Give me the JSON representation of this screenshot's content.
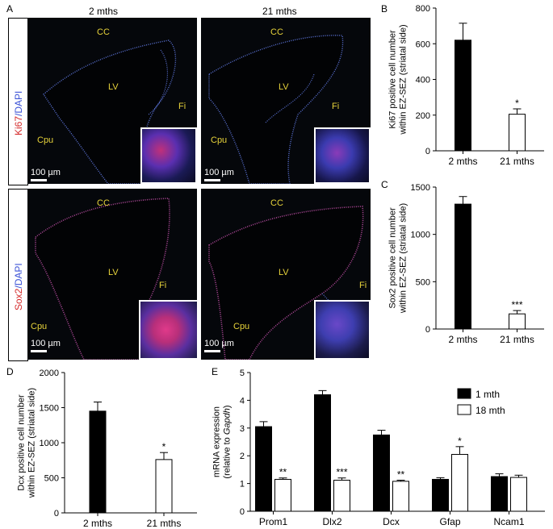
{
  "panels": {
    "A": {
      "letter": "A",
      "col_left": "2 mths",
      "col_right": "21 mths",
      "row_top_marker": "Ki67",
      "row_top_stain": "/DAPI",
      "row_bottom_marker": "Sox2",
      "row_bottom_stain": "/DAPI",
      "scale": "100 µm",
      "regions": {
        "cc": "CC",
        "lv": "LV",
        "fi": "Fi",
        "cpu": "Cpu"
      }
    },
    "B": {
      "letter": "B"
    },
    "C": {
      "letter": "C"
    },
    "D": {
      "letter": "D"
    },
    "E": {
      "letter": "E"
    }
  },
  "colors": {
    "filled": "#000000",
    "empty": "#ffffff",
    "tissue_bg": "#05070b",
    "label": "#e6d23a",
    "marker_red": "#d42a2a",
    "dapi_blue": "#3b52d6"
  },
  "chart_data": [
    {
      "id": "B",
      "type": "bar",
      "categories": [
        "2 mths",
        "21 mths"
      ],
      "values": [
        620,
        205
      ],
      "errors": [
        95,
        30
      ],
      "fills": [
        "filled",
        "empty"
      ],
      "significance": [
        "",
        "*"
      ],
      "ylabel_line1": "Ki67 positive cell number",
      "ylabel_line2": "within EZ-SEZ (striatal side)",
      "ylim": [
        0,
        800
      ],
      "yticks": [
        0,
        200,
        400,
        600,
        800
      ]
    },
    {
      "id": "C",
      "type": "bar",
      "categories": [
        "2 mths",
        "21 mths"
      ],
      "values": [
        1320,
        160
      ],
      "errors": [
        80,
        35
      ],
      "fills": [
        "filled",
        "empty"
      ],
      "significance": [
        "",
        "***"
      ],
      "ylabel_line1": "Sox2 positive cell number",
      "ylabel_line2": "within EZ-SEZ (striatal side)",
      "ylim": [
        0,
        1500
      ],
      "yticks": [
        0,
        500,
        1000,
        1500
      ]
    },
    {
      "id": "D",
      "type": "bar",
      "categories": [
        "2 mths",
        "21 mths"
      ],
      "values": [
        1450,
        760
      ],
      "errors": [
        130,
        100
      ],
      "fills": [
        "filled",
        "empty"
      ],
      "significance": [
        "",
        "*"
      ],
      "ylabel_line1": "Dcx positive cell number",
      "ylabel_line2": "within EZ-SEZ (striatal side)",
      "ylim": [
        0,
        2000
      ],
      "yticks": [
        0,
        500,
        1000,
        1500,
        2000
      ]
    },
    {
      "id": "E",
      "type": "bar",
      "categories": [
        "Prom1",
        "Dlx2",
        "Dcx",
        "Gfap",
        "Ncam1"
      ],
      "series": [
        {
          "name": "1 mth",
          "fill": "filled",
          "values": [
            3.05,
            4.2,
            2.75,
            1.15,
            1.25
          ],
          "errors": [
            0.18,
            0.15,
            0.17,
            0.06,
            0.1
          ]
        },
        {
          "name": "18 mth",
          "fill": "empty",
          "values": [
            1.15,
            1.12,
            1.08,
            2.05,
            1.22
          ],
          "errors": [
            0.05,
            0.08,
            0.04,
            0.28,
            0.08
          ]
        }
      ],
      "significance": [
        "**",
        "***",
        "**",
        "*",
        ""
      ],
      "ylabel_line1": "mRNA expression",
      "ylabel_line2_prefix": "(relative to ",
      "ylabel_line2_italic": "Gapdh",
      "ylabel_line2_suffix": ")",
      "ylim": [
        0,
        5
      ],
      "yticks": [
        0,
        1,
        2,
        3,
        4,
        5
      ]
    }
  ]
}
